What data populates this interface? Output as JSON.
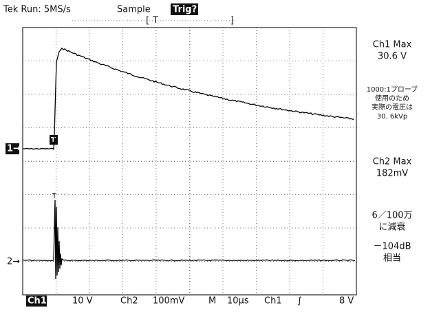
{
  "header": {
    "run": "Tek Run: 5MS/s",
    "mode": "Sample",
    "trigger_status": "Trig?",
    "trigger_position": "T"
  },
  "markers": {
    "ch1": "1→",
    "ch2": "2→",
    "trigger_ch1": "T",
    "trigger_ch2": "T"
  },
  "side_notes": {
    "ch1_max_label": "Ch1 Max",
    "ch1_max_value": "30.6 V",
    "probe_note": [
      "1000:1プローブ",
      "使用のため",
      "実際の電圧は",
      "30. 6kVp"
    ],
    "ch2_max_label": "Ch2 Max",
    "ch2_max_value": "182mV",
    "attenuation": [
      "6／100万",
      "に減衰"
    ],
    "decibel": [
      "－104dB",
      "相当"
    ]
  },
  "footer": {
    "ch1": "Ch1",
    "ch1_scale": "10 V",
    "ch2": "Ch2",
    "ch2_scale": "100mV",
    "time": "M",
    "time_scale": "10µs",
    "trigger_source": "Ch1",
    "trigger_slope": "∫",
    "trigger_level": "8 V"
  }
}
